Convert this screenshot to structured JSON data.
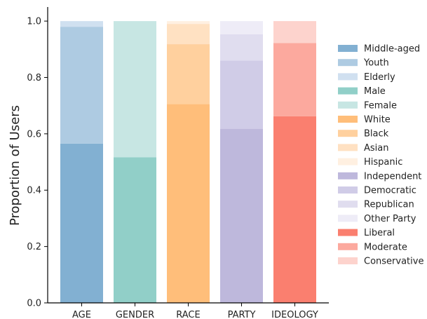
{
  "chart_data": {
    "type": "bar",
    "stacked": true,
    "ylabel": "Proportion of Users",
    "xlabel": "",
    "ylim": [
      0,
      1.05
    ],
    "yticks": [
      "0.0",
      "0.2",
      "0.4",
      "0.6",
      "0.8",
      "1.0"
    ],
    "grid": false,
    "legend_position": "right",
    "categories": [
      "AGE",
      "GENDER",
      "RACE",
      "PARTY",
      "IDEOLOGY"
    ],
    "groups": [
      {
        "category": "AGE",
        "segments": [
          {
            "name": "Middle-aged",
            "value": 0.565,
            "color": "#82b0d2"
          },
          {
            "name": "Youth",
            "value": 0.415,
            "color": "#aecbe2"
          },
          {
            "name": "Elderly",
            "value": 0.02,
            "color": "#d0e0f0"
          }
        ]
      },
      {
        "category": "GENDER",
        "segments": [
          {
            "name": "Male",
            "value": 0.517,
            "color": "#91cfc8"
          },
          {
            "name": "Female",
            "value": 0.483,
            "color": "#c7e6e3"
          }
        ]
      },
      {
        "category": "RACE",
        "segments": [
          {
            "name": "White",
            "value": 0.706,
            "color": "#ffbe7a"
          },
          {
            "name": "Black",
            "value": 0.212,
            "color": "#ffd09e"
          },
          {
            "name": "Asian",
            "value": 0.072,
            "color": "#ffe1c2"
          },
          {
            "name": "Hispanic",
            "value": 0.01,
            "color": "#fff0e1"
          }
        ]
      },
      {
        "category": "PARTY",
        "segments": [
          {
            "name": "Independent",
            "value": 0.618,
            "color": "#beb8dc"
          },
          {
            "name": "Democratic",
            "value": 0.242,
            "color": "#d0cce7"
          },
          {
            "name": "Republican",
            "value": 0.093,
            "color": "#e0ddef"
          },
          {
            "name": "Other Party",
            "value": 0.047,
            "color": "#eeecf7"
          }
        ]
      },
      {
        "category": "IDEOLOGY",
        "segments": [
          {
            "name": "Liberal",
            "value": 0.662,
            "color": "#fa7f6f"
          },
          {
            "name": "Moderate",
            "value": 0.26,
            "color": "#fca99e"
          },
          {
            "name": "Conservative",
            "value": 0.078,
            "color": "#fdd3cd"
          }
        ]
      }
    ],
    "legend": [
      {
        "name": "Middle-aged",
        "color": "#82b0d2"
      },
      {
        "name": "Youth",
        "color": "#aecbe2"
      },
      {
        "name": "Elderly",
        "color": "#d0e0f0"
      },
      {
        "name": "Male",
        "color": "#91cfc8"
      },
      {
        "name": "Female",
        "color": "#c7e6e3"
      },
      {
        "name": "White",
        "color": "#ffbe7a"
      },
      {
        "name": "Black",
        "color": "#ffd09e"
      },
      {
        "name": "Asian",
        "color": "#ffe1c2"
      },
      {
        "name": "Hispanic",
        "color": "#fff0e1"
      },
      {
        "name": "Independent",
        "color": "#beb8dc"
      },
      {
        "name": "Democratic",
        "color": "#d0cce7"
      },
      {
        "name": "Republican",
        "color": "#e0ddef"
      },
      {
        "name": "Other Party",
        "color": "#eeecf7"
      },
      {
        "name": "Liberal",
        "color": "#fa7f6f"
      },
      {
        "name": "Moderate",
        "color": "#fca99e"
      },
      {
        "name": "Conservative",
        "color": "#fdd3cd"
      }
    ]
  }
}
